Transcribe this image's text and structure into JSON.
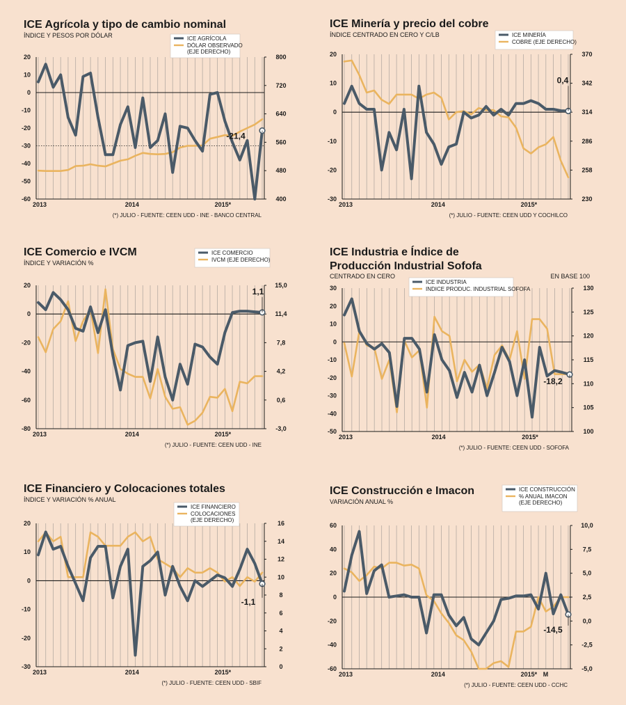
{
  "colors": {
    "background": "#f8e1cf",
    "ice_line": "#4a5a68",
    "secondary_line": "#eab45f",
    "grid": "#b4aaa2",
    "axis": "#1a1a1a"
  },
  "chart_data": [
    {
      "id": "agricola",
      "type": "line",
      "title": "ICE Agrícola y tipo de cambio nominal",
      "subtitle": "ÍNDICE Y PESOS POR DÓLAR",
      "note": "(*) JULIO - FUENTE: CEEN UDD - INE - BANCO CENTRAL",
      "x_labels": [
        "2013",
        "2014",
        "2015*"
      ],
      "x_label_positions": [
        0,
        12,
        24
      ],
      "left_ticks": [
        "20",
        "10",
        "0",
        "-10",
        "-20",
        "-30",
        "-40",
        "-50",
        "-60"
      ],
      "right_ticks": [
        "800",
        "720",
        "640",
        "560",
        "480",
        "400"
      ],
      "left_ylim": [
        -60,
        20
      ],
      "right_ylim": [
        400,
        800
      ],
      "dotted_left_value": -30,
      "series": [
        {
          "name": "ICE AGRÍCOLA",
          "axis": "left",
          "values": [
            6,
            16,
            3,
            10,
            -14,
            -24,
            9,
            11,
            -14,
            -35,
            -35,
            -18,
            -8,
            -31,
            -3,
            -31,
            -27,
            -12,
            -45,
            -19,
            -20,
            -27,
            -33,
            -1,
            0,
            -16,
            -28,
            -38,
            -27,
            -60,
            -21.4
          ]
        },
        {
          "name": "DÓLAR OBSERVADO (EJE DERECHO)",
          "axis": "right",
          "values": [
            480,
            479,
            479,
            479,
            482,
            493,
            494,
            498,
            494,
            492,
            500,
            508,
            512,
            522,
            530,
            527,
            526,
            527,
            532,
            545,
            550,
            550,
            551,
            570,
            575,
            580,
            578,
            590,
            600,
            610,
            625
          ]
        }
      ],
      "last_value_label": "-21,4"
    },
    {
      "id": "mineria",
      "type": "line",
      "title": "ICE Minería y precio del cobre",
      "subtitle": "ÍNDICE CENTRADO EN CERO Y C/LB",
      "note": "(*) JULIO - FUENTE: CEEN UDD Y COCHILCO",
      "x_labels": [
        "2013",
        "2014",
        "2015*"
      ],
      "x_label_positions": [
        0,
        12,
        24
      ],
      "left_ticks": [
        "20",
        "10",
        "0",
        "-10",
        "-20",
        "-30"
      ],
      "right_ticks": [
        "370",
        "342",
        "314",
        "286",
        "258",
        "230"
      ],
      "left_ylim": [
        -30,
        20
      ],
      "right_ylim": [
        230,
        370
      ],
      "series": [
        {
          "name": "ICE MINERÍA",
          "axis": "left",
          "values": [
            3,
            9,
            3,
            1,
            1,
            -20,
            -7,
            -13,
            1,
            -23,
            9,
            -7,
            -11,
            -18,
            -12,
            -11,
            0,
            -2,
            -1,
            2,
            -1,
            1,
            -1,
            3,
            3,
            4,
            3,
            1,
            1,
            0.5,
            0.4
          ]
        },
        {
          "name": "COBRE (EJE DERECHO)",
          "axis": "right",
          "values": [
            363,
            364,
            350,
            333,
            335,
            326,
            322,
            331,
            331,
            331,
            327,
            331,
            333,
            328,
            307,
            314,
            315,
            312,
            318,
            316,
            316,
            310,
            309,
            299,
            279,
            274,
            280,
            283,
            290,
            267,
            251
          ]
        }
      ],
      "last_value_label": "0,4"
    },
    {
      "id": "comercio",
      "type": "line",
      "title": "ICE Comercio e IVCM",
      "subtitle": "ÍNDICE Y VARIACIÓN %",
      "note": "(*) JULIO - FUENTE: CEEN UDD - INE",
      "x_labels": [
        "2013",
        "2014",
        "2015*"
      ],
      "x_label_positions": [
        0,
        12,
        24
      ],
      "left_ticks": [
        "20",
        "0",
        "-20",
        "-40",
        "-60",
        "-80"
      ],
      "right_ticks": [
        "15,0",
        "11,4",
        "7,8",
        "4,2",
        "0,6",
        "-3,0"
      ],
      "left_ylim": [
        -80,
        20
      ],
      "right_ylim": [
        -3,
        15
      ],
      "series": [
        {
          "name": "ICE COMERCIO",
          "axis": "left",
          "values": [
            8,
            3,
            15,
            10,
            3,
            -10,
            -12,
            5,
            -13,
            3,
            -29,
            -53,
            -22,
            -20,
            -19,
            -47,
            -16,
            -44,
            -60,
            -35,
            -49,
            -21,
            -23,
            -30,
            -35,
            -13,
            1,
            2,
            2,
            1.5,
            1.1
          ]
        },
        {
          "name": "IVCM (EJE DERECHO)",
          "axis": "right",
          "values": [
            8.5,
            6.6,
            9.5,
            10.5,
            13,
            8,
            10.5,
            12,
            6.5,
            14.5,
            7,
            4.5,
            3.9,
            3.5,
            3.5,
            0.8,
            4.5,
            1,
            -0.5,
            -0.3,
            -2.5,
            -2,
            -1,
            1,
            0.9,
            2,
            -0.8,
            2.9,
            2.7,
            3.6,
            3.6
          ]
        }
      ],
      "last_value_label": "1,1"
    },
    {
      "id": "industria",
      "type": "line",
      "title": "ICE Industria e Índice de Producción Industrial Sofofa",
      "title_lines": [
        "ICE Industria e Índice de",
        "Producción Industrial Sofofa"
      ],
      "subtitle": "CENTRADO EN CERO",
      "right_subtitle": "EN BASE 100",
      "note": "(*) JULIO - FUENTE: CEEN UDD - SOFOFA",
      "x_labels": [
        "2013",
        "2014",
        "2015*"
      ],
      "x_label_positions": [
        0,
        12,
        24
      ],
      "left_ticks": [
        "30",
        "20",
        "10",
        "0",
        "-10",
        "-20",
        "-30",
        "-40",
        "-50"
      ],
      "right_ticks": [
        "130",
        "125",
        "120",
        "115",
        "110",
        "105",
        "100"
      ],
      "left_ylim": [
        -50,
        30
      ],
      "right_ylim": [
        100,
        130
      ],
      "series": [
        {
          "name": "ICE INDUSTRIA",
          "axis": "left",
          "values": [
            15,
            24,
            6,
            -1,
            -4,
            -1,
            -6,
            -36,
            2,
            2,
            -4,
            -28,
            4,
            -10,
            -16,
            -31,
            -17,
            -28,
            -13,
            -30,
            -17,
            -3,
            -11,
            -30,
            -10,
            -42,
            -3,
            -19,
            -16,
            -17,
            -18.2
          ]
        },
        {
          "name": "INDICE PRODUC. INDUSTRIAL SOFOFA",
          "axis": "right",
          "values": [
            118.5,
            111.5,
            121,
            118,
            117.5,
            111,
            115,
            104,
            119,
            115.5,
            117,
            105,
            124,
            121,
            120,
            110.5,
            115,
            112.5,
            114,
            109,
            116,
            118,
            115,
            121,
            111,
            123.5,
            123.5,
            121.5,
            112,
            112,
            112
          ]
        }
      ],
      "last_value_label": "-18,2"
    },
    {
      "id": "financiero",
      "type": "line",
      "title": "ICE Financiero y Colocaciones totales",
      "subtitle": "ÍNDICE Y VARIACIÓN % ANUAL",
      "note": "(*) JULIO - FUENTE: CEEN UDD - SBIF",
      "x_labels": [
        "2013",
        "2014",
        "2015*"
      ],
      "x_label_positions": [
        0,
        12,
        24
      ],
      "left_ticks": [
        "20",
        "10",
        "0",
        "-10",
        "-20",
        "-30"
      ],
      "right_ticks": [
        "16",
        "14",
        "12",
        "10",
        "8",
        "6",
        "4",
        "2",
        "0"
      ],
      "left_ylim": [
        -30,
        20
      ],
      "right_ylim": [
        0,
        16
      ],
      "series": [
        {
          "name": "ICE FINANCIERO",
          "axis": "left",
          "values": [
            9,
            17,
            11,
            12,
            5,
            -1,
            -7,
            8,
            12,
            12,
            -6,
            5,
            11,
            -26,
            5,
            7,
            10,
            -5,
            5,
            -2,
            -7,
            0,
            -2,
            0,
            2,
            1,
            -2,
            4,
            11,
            6,
            -1.1
          ]
        },
        {
          "name": "COLOCACIONES (EJE DERECHO)",
          "axis": "right",
          "values": [
            14,
            15,
            14,
            14.5,
            10,
            10,
            10,
            15,
            14.5,
            13.5,
            13.5,
            13.5,
            14.5,
            15,
            14,
            14.5,
            12,
            11.5,
            11,
            10,
            11,
            10.5,
            10.5,
            11,
            10.5,
            9.5,
            10,
            9,
            10,
            9.5,
            10.5
          ]
        }
      ],
      "last_value_label": "-1,1"
    },
    {
      "id": "construccion",
      "type": "line",
      "title": "ICE Construcción e Imacon",
      "subtitle": "VARIACIÓN ANUAL %",
      "note": "(*) JULIO - FUENTE: CEEN UDD - CCHC",
      "x_labels": [
        "2013",
        "2014",
        "2015*",
        "M"
      ],
      "x_label_positions": [
        0,
        12,
        24,
        27
      ],
      "left_ticks": [
        "60",
        "40",
        "20",
        "0",
        "-20",
        "-40",
        "-60"
      ],
      "right_ticks": [
        "10,0",
        "7,5",
        "5,0",
        "2,5",
        "0,0",
        "-2,5",
        "-5,0"
      ],
      "left_ylim": [
        -60,
        60
      ],
      "right_ylim": [
        -5,
        10
      ],
      "series": [
        {
          "name": "ICE CONSTRUCCIÓN",
          "axis": "left",
          "values": [
            5,
            35,
            55,
            3,
            22,
            27,
            0,
            1,
            2,
            0,
            0,
            -30,
            2,
            2,
            -15,
            -24,
            -17,
            -35,
            -40,
            -30,
            -20,
            -2,
            -1,
            1,
            1,
            2,
            -10,
            20,
            -14,
            2,
            -14.5
          ]
        },
        {
          "name": "% ANUAL IMACON (EJE DERECHO)",
          "axis": "right",
          "values": [
            5.5,
            5.1,
            4.2,
            4.8,
            5.7,
            5.5,
            6.1,
            6.1,
            5.8,
            5.9,
            5.5,
            2.7,
            2.1,
            0.8,
            -0.2,
            -1.5,
            -2,
            -3.2,
            -5,
            -5,
            -4.4,
            -4.2,
            -4.8,
            -1.1,
            -1.1,
            -0.6,
            2.5,
            1,
            1.5,
            2.5,
            2.5
          ]
        }
      ],
      "last_value_label": "-14,5"
    }
  ]
}
